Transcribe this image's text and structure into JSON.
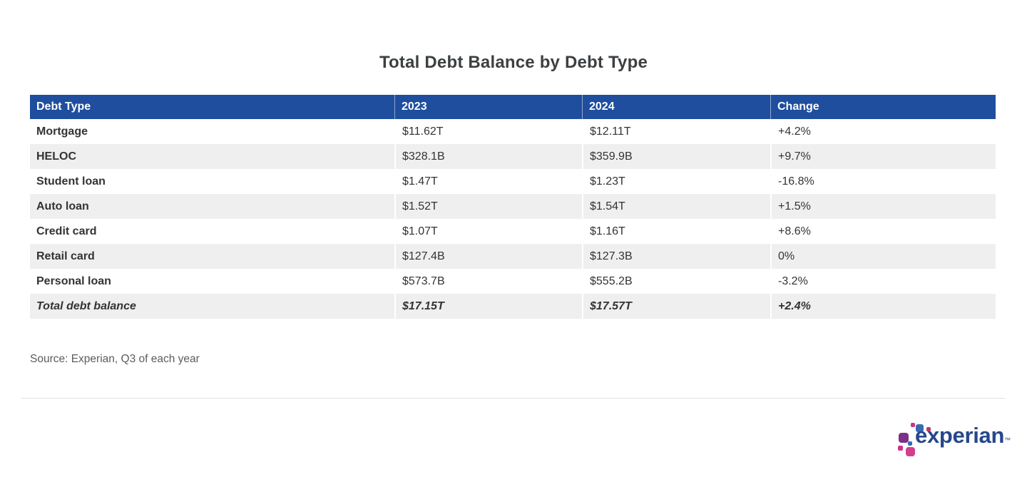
{
  "page_title": "Total Debt Balance by Debt Type",
  "chart_data": {
    "type": "table",
    "title": "Total Debt Balance by Debt Type",
    "columns": [
      "Debt Type",
      "2023",
      "2024",
      "Change"
    ],
    "rows": [
      [
        "Mortgage",
        "$11.62T",
        "$12.11T",
        "+4.2%"
      ],
      [
        "HELOC",
        "$328.1B",
        "$359.9B",
        "+9.7%"
      ],
      [
        "Student loan",
        "$1.47T",
        "$1.23T",
        "-16.8%"
      ],
      [
        "Auto loan",
        "$1.52T",
        "$1.54T",
        "+1.5%"
      ],
      [
        "Credit card",
        "$1.07T",
        "$1.16T",
        "+8.6%"
      ],
      [
        "Retail card",
        "$127.4B",
        "$127.3B",
        "0%"
      ],
      [
        "Personal loan",
        "$573.7B",
        "$555.2B",
        "-3.2%"
      ],
      [
        "Total debt balance",
        "$17.15T",
        "$17.57T",
        "+2.4%"
      ]
    ],
    "total_row_index": 7,
    "source": "Source: Experian, Q3 of each year",
    "layout": {
      "striped_rows": true,
      "header_style": "solid-blue",
      "total_row_style": "bold-italic"
    }
  },
  "logo": {
    "wordmark": "experian",
    "trademark": "™"
  },
  "colors": {
    "header_bg": "#1f4e9e",
    "header_text": "#ffffff",
    "row_alt_bg": "#efefef",
    "body_text": "#333333",
    "title_text": "#3c4043",
    "source_text": "#5c5c5c",
    "divider": "#e2e2e2",
    "logo_navy": "#26478d",
    "logo_purple": "#7b2f89",
    "logo_blue": "#3a6ab1",
    "logo_magenta": "#c9368d",
    "logo_pink": "#d33f8f",
    "logo_crimson": "#b93a64"
  }
}
